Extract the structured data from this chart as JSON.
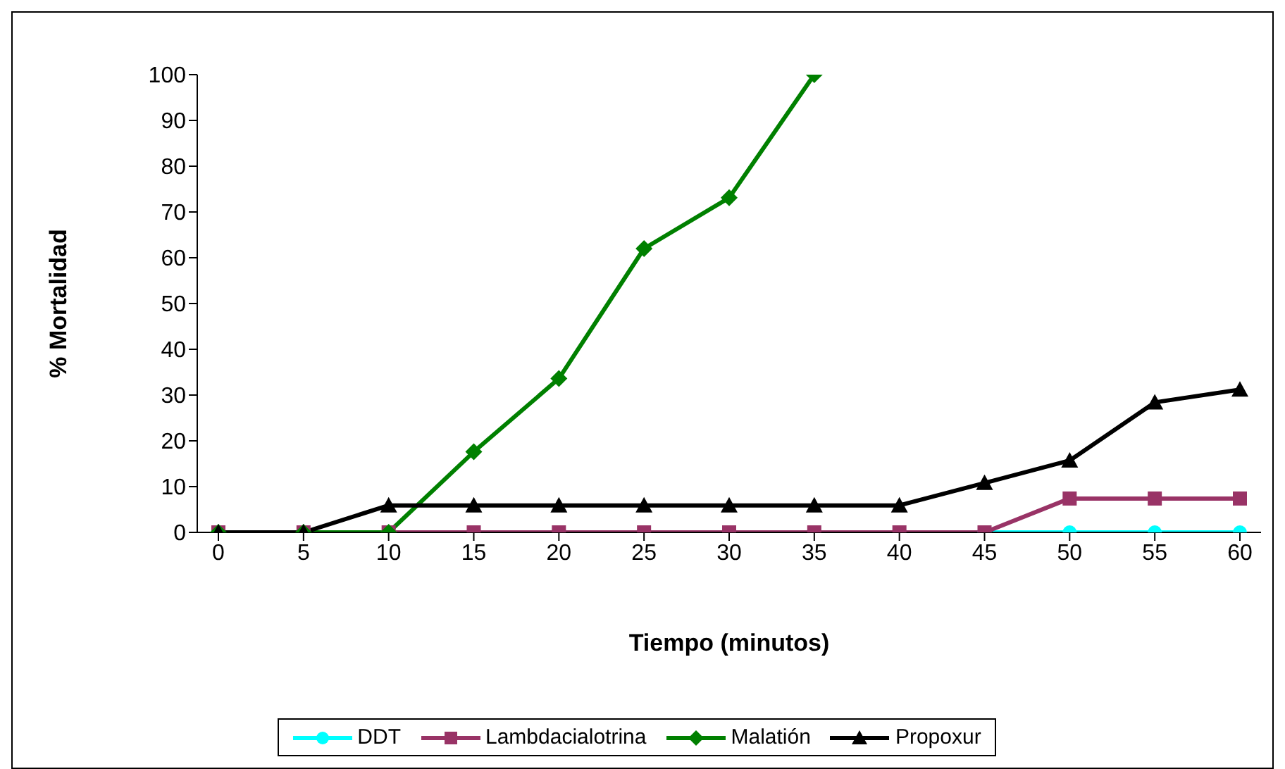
{
  "chart_data": {
    "type": "line",
    "xlabel": "Tiempo (minutos)",
    "ylabel": "% Mortalidad",
    "categories": [
      "0",
      "5",
      "10",
      "15",
      "20",
      "25",
      "30",
      "35",
      "40",
      "45",
      "50",
      "55",
      "60"
    ],
    "ylim": [
      0,
      100
    ],
    "yticks": [
      0,
      10,
      20,
      30,
      40,
      50,
      60,
      70,
      80,
      90,
      100
    ],
    "grid": false,
    "legend": "bottom",
    "series": [
      {
        "name": "DDT",
        "color": "#00ffff",
        "marker": "circle",
        "values": [
          null,
          null,
          null,
          null,
          null,
          null,
          null,
          null,
          null,
          0,
          0,
          0,
          0
        ]
      },
      {
        "name": "Lambdacialotrina",
        "color": "#993366",
        "marker": "square",
        "values": [
          0,
          0,
          0,
          0,
          0,
          0,
          0,
          0,
          0,
          0,
          7.4,
          7.4,
          7.4
        ]
      },
      {
        "name": "Malatión",
        "color": "#008000",
        "marker": "diamond",
        "values": [
          0,
          0,
          0,
          17.6,
          33.6,
          62,
          73.1,
          100,
          null,
          null,
          null,
          null,
          null
        ]
      },
      {
        "name": "Propoxur",
        "color": "#000000",
        "marker": "triangle",
        "values": [
          0,
          0,
          5.9,
          5.9,
          5.9,
          5.9,
          5.9,
          5.9,
          5.9,
          10.8,
          15.7,
          28.4,
          31.2
        ]
      }
    ]
  }
}
